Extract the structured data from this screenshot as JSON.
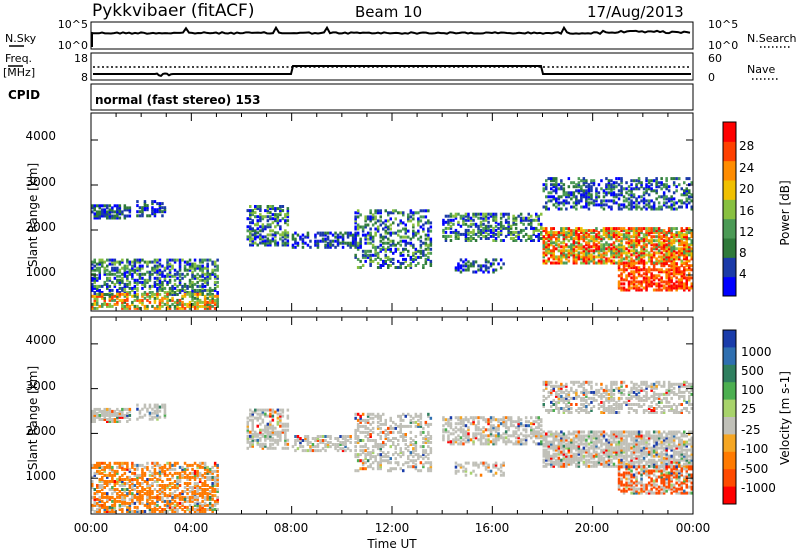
{
  "header": {
    "title": "Pykkvibaer (fitACF)",
    "beam": "Beam 10",
    "date": "17/Aug/2013"
  },
  "noise_panel": {
    "left_label": "N.Sky",
    "left_ticks": [
      "10^5",
      "10^0"
    ],
    "right_label": "N.Search",
    "right_ticks": [
      "10^5",
      "10^0"
    ]
  },
  "freq_panel": {
    "left_label_1": "Freq.",
    "left_label_2": "[MHz]",
    "left_ticks": [
      "18",
      "8"
    ],
    "right_label": "Nave",
    "right_ticks": [
      "60",
      "0"
    ]
  },
  "cpid_panel": {
    "label": "CPID",
    "text": "normal (fast stereo) 153"
  },
  "colors": {
    "power": [
      "#0000ff",
      "#1b3aa8",
      "#2f7a3a",
      "#4b9a55",
      "#88c040",
      "#f0c000",
      "#ff8c00",
      "#ff4000",
      "#ff0000"
    ],
    "velocity": [
      "#1a3caa",
      "#2f6fb0",
      "#2f7f5f",
      "#4caf50",
      "#a8d36b",
      "#c0c0b8",
      "#f5a623",
      "#ff7a00",
      "#ff4a00",
      "#ff0000"
    ],
    "scatter_grey": "#c0c0b8"
  },
  "chart_data": [
    {
      "type": "heatmap",
      "ylabel": "Slant Range [km]",
      "y_ticks": [
        "1000",
        "2000",
        "3000",
        "4000"
      ],
      "ylim": [
        200,
        4600
      ],
      "xlim_hours": [
        0,
        24
      ],
      "colorbar_label": "Power [dB]",
      "colorbar_ticks": [
        "4",
        "8",
        "12",
        "16",
        "20",
        "24",
        "28"
      ],
      "colorbar_range": [
        0,
        32
      ]
    },
    {
      "type": "heatmap",
      "ylabel": "Slant Range [km]",
      "y_ticks": [
        "1000",
        "2000",
        "3000",
        "4000"
      ],
      "ylim": [
        200,
        4600
      ],
      "xlim_hours": [
        0,
        24
      ],
      "xlabel": "Time UT",
      "x_ticks": [
        "00:00",
        "04:00",
        "08:00",
        "12:00",
        "16:00",
        "20:00",
        "00:00"
      ],
      "colorbar_label": "Velocity [m s-1]",
      "colorbar_ticks": [
        "1000",
        "500",
        "100",
        "25",
        "-25",
        "-100",
        "-500",
        "-1000"
      ]
    }
  ]
}
